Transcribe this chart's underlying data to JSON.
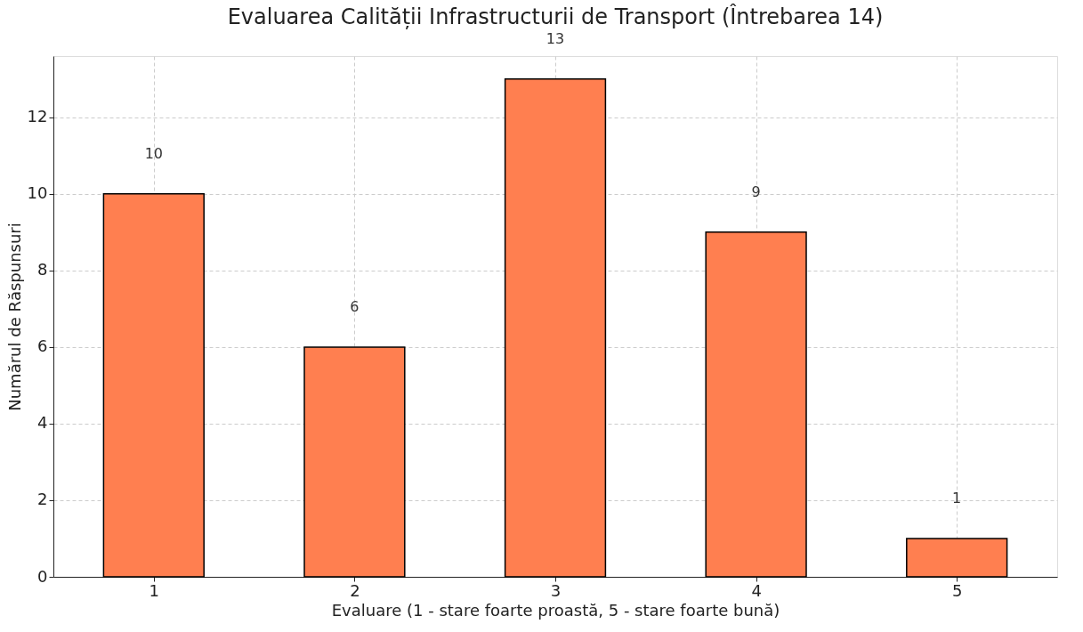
{
  "chart_data": {
    "type": "bar",
    "title": "Evaluarea Calității Infrastructurii de Transport (Întrebarea 14)",
    "xlabel": "Evaluare (1 - stare foarte proastă, 5 - stare foarte bună)",
    "ylabel": "Numărul de Răspunsuri",
    "categories": [
      "1",
      "2",
      "3",
      "4",
      "5"
    ],
    "values": [
      10,
      6,
      13,
      9,
      1
    ],
    "color": "#ff7f50",
    "ylim": [
      0,
      13.6
    ],
    "yticks": [
      0,
      2,
      4,
      6,
      8,
      10,
      12
    ],
    "grid": true,
    "data_labels": true
  }
}
